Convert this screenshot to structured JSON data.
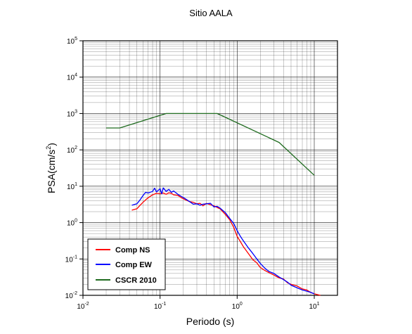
{
  "chart_data": {
    "type": "line",
    "title": "Sitio AALA",
    "xlabel": "Periodo (s)",
    "ylabel_main": "PSA(cm/s",
    "ylabel_sup": "2",
    "ylabel_tail": ")",
    "x_scale": "log",
    "y_scale": "log",
    "xlim": [
      0.01,
      20
    ],
    "ylim": [
      0.01,
      100000
    ],
    "grid": true,
    "legend_position": "bottom-left",
    "x_ticks": [
      {
        "value": 0.01,
        "base": "10",
        "exp": "-2"
      },
      {
        "value": 0.1,
        "base": "10",
        "exp": "-1"
      },
      {
        "value": 1,
        "base": "10",
        "exp": "0"
      },
      {
        "value": 10,
        "base": "10",
        "exp": "1"
      }
    ],
    "y_ticks": [
      {
        "value": 0.01,
        "base": "10",
        "exp": "-2"
      },
      {
        "value": 0.1,
        "base": "10",
        "exp": "-1"
      },
      {
        "value": 1,
        "base": "10",
        "exp": "0"
      },
      {
        "value": 10,
        "base": "10",
        "exp": "1"
      },
      {
        "value": 100,
        "base": "10",
        "exp": "2"
      },
      {
        "value": 1000,
        "base": "10",
        "exp": "3"
      },
      {
        "value": 10000,
        "base": "10",
        "exp": "4"
      },
      {
        "value": 100000,
        "base": "10",
        "exp": "5"
      }
    ],
    "series": [
      {
        "name": "Comp NS",
        "color": "#ff0000",
        "x": [
          0.043,
          0.05,
          0.055,
          0.06,
          0.065,
          0.07,
          0.08,
          0.09,
          0.1,
          0.11,
          0.12,
          0.13,
          0.14,
          0.15,
          0.17,
          0.19,
          0.21,
          0.24,
          0.27,
          0.3,
          0.33,
          0.36,
          0.4,
          0.45,
          0.5,
          0.55,
          0.6,
          0.7,
          0.8,
          0.9,
          1.0,
          1.1,
          1.2,
          1.4,
          1.6,
          1.8,
          2.0,
          2.3,
          2.6,
          3.0,
          3.5,
          4.0,
          4.5,
          5.0,
          6.0,
          7.0,
          8.0,
          9.0,
          10.0,
          12.0
        ],
        "y": [
          2.2,
          2.4,
          3.0,
          3.6,
          4.2,
          4.8,
          5.8,
          6.4,
          6.2,
          6.5,
          6.0,
          6.6,
          6.4,
          5.8,
          5.6,
          4.8,
          4.3,
          3.8,
          3.6,
          3.3,
          3.4,
          2.9,
          3.4,
          3.1,
          2.9,
          2.6,
          2.4,
          1.7,
          1.2,
          0.75,
          0.42,
          0.3,
          0.22,
          0.14,
          0.095,
          0.078,
          0.058,
          0.048,
          0.042,
          0.036,
          0.03,
          0.028,
          0.022,
          0.02,
          0.018,
          0.015,
          0.014,
          0.012,
          0.011,
          0.01
        ]
      },
      {
        "name": "Comp EW",
        "color": "#0000ff",
        "x": [
          0.043,
          0.05,
          0.055,
          0.06,
          0.065,
          0.07,
          0.08,
          0.085,
          0.09,
          0.1,
          0.105,
          0.11,
          0.12,
          0.13,
          0.14,
          0.15,
          0.17,
          0.19,
          0.21,
          0.24,
          0.27,
          0.3,
          0.33,
          0.36,
          0.4,
          0.45,
          0.5,
          0.55,
          0.6,
          0.7,
          0.8,
          0.9,
          1.0,
          1.1,
          1.2,
          1.4,
          1.6,
          1.8,
          2.0,
          2.3,
          2.6,
          3.0,
          3.5,
          4.0,
          4.5,
          5.0,
          6.0,
          7.0,
          8.0,
          9.0,
          10.0
        ],
        "y": [
          3.0,
          3.3,
          4.2,
          5.5,
          6.8,
          6.5,
          7.2,
          8.8,
          7.0,
          8.5,
          6.2,
          9.0,
          7.2,
          8.2,
          6.8,
          7.4,
          6.0,
          5.2,
          4.6,
          3.8,
          3.2,
          3.3,
          3.0,
          3.2,
          3.3,
          3.4,
          2.7,
          2.8,
          2.5,
          1.9,
          1.3,
          0.95,
          0.6,
          0.42,
          0.32,
          0.2,
          0.14,
          0.1,
          0.075,
          0.055,
          0.045,
          0.04,
          0.032,
          0.027,
          0.023,
          0.019,
          0.016,
          0.014,
          0.013,
          0.012,
          0.011
        ]
      },
      {
        "name": "CSCR 2010",
        "color": "#1f6b1f",
        "x": [
          0.02,
          0.03,
          0.12,
          0.55,
          3.5,
          10.0
        ],
        "y": [
          400,
          400,
          1000,
          1000,
          160,
          20
        ]
      }
    ]
  }
}
